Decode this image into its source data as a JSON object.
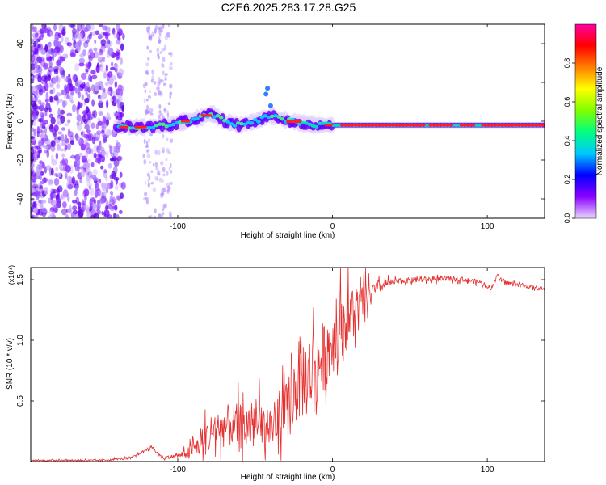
{
  "title": "C2E6.2025.283.17.28.G25",
  "chart_data": [
    {
      "type": "heatmap",
      "name": "spectrogram",
      "xlabel": "Height of straight line (km)",
      "ylabel": "Frequency (Hz)",
      "xlim": [
        -195,
        137
      ],
      "ylim": [
        -50,
        50
      ],
      "xticks": [
        -100,
        0,
        100
      ],
      "yticks": [
        -40,
        -20,
        0,
        20,
        40
      ],
      "ridge": [
        {
          "x": -140,
          "y": -3
        },
        {
          "x": -120,
          "y": -3
        },
        {
          "x": -105,
          "y": -2
        },
        {
          "x": -95,
          "y": 0
        },
        {
          "x": -85,
          "y": 2
        },
        {
          "x": -78,
          "y": 4
        },
        {
          "x": -70,
          "y": 0
        },
        {
          "x": -60,
          "y": -2
        },
        {
          "x": -50,
          "y": 0
        },
        {
          "x": -40,
          "y": 3
        },
        {
          "x": -32,
          "y": 1
        },
        {
          "x": -20,
          "y": -1
        },
        {
          "x": -10,
          "y": -2
        },
        {
          "x": 0,
          "y": -2
        },
        {
          "x": 20,
          "y": -2
        },
        {
          "x": 60,
          "y": -2
        },
        {
          "x": 100,
          "y": -2
        },
        {
          "x": 137,
          "y": -2
        }
      ],
      "colorbar": {
        "label": "Normalized spectral amplitude",
        "ticks": [
          0.0,
          0.2,
          0.4,
          0.6,
          0.8
        ],
        "tick_labels": [
          "0.0",
          "0.2",
          "0.4",
          "0.6",
          "0.8"
        ],
        "range": [
          0,
          1
        ],
        "colors": [
          "#e8d8ff",
          "#8a00ff",
          "#0000ff",
          "#00c8ff",
          "#00ff80",
          "#80ff00",
          "#ffff00",
          "#ff8000",
          "#ff0000",
          "#ff00a0"
        ]
      }
    },
    {
      "type": "line",
      "name": "snr",
      "xlabel": "Height of straight line (km)",
      "ylabel": "SNR (10 * v/v)",
      "y_multiplier": "(x10⁴)",
      "xlim": [
        -195,
        137
      ],
      "ylim": [
        0,
        1.6
      ],
      "xticks": [
        -100,
        0,
        100
      ],
      "yticks": [
        0.5,
        1.0,
        1.5
      ],
      "ytick_labels": [
        "0.5",
        "1.0",
        "1.5"
      ],
      "color": "#e53030",
      "trend": [
        {
          "x": -195,
          "y": 0.01
        },
        {
          "x": -150,
          "y": 0.01
        },
        {
          "x": -130,
          "y": 0.03
        },
        {
          "x": -117,
          "y": 0.12
        },
        {
          "x": -110,
          "y": 0.03
        },
        {
          "x": -95,
          "y": 0.06
        },
        {
          "x": -85,
          "y": 0.15
        },
        {
          "x": -75,
          "y": 0.28
        },
        {
          "x": -65,
          "y": 0.3
        },
        {
          "x": -55,
          "y": 0.28
        },
        {
          "x": -45,
          "y": 0.3
        },
        {
          "x": -38,
          "y": 0.28
        },
        {
          "x": -30,
          "y": 0.4
        },
        {
          "x": -22,
          "y": 0.68
        },
        {
          "x": -15,
          "y": 0.72
        },
        {
          "x": -5,
          "y": 0.88
        },
        {
          "x": 5,
          "y": 1.12
        },
        {
          "x": 15,
          "y": 1.24
        },
        {
          "x": 25,
          "y": 1.4
        },
        {
          "x": 35,
          "y": 1.47
        },
        {
          "x": 45,
          "y": 1.49
        },
        {
          "x": 60,
          "y": 1.5
        },
        {
          "x": 80,
          "y": 1.51
        },
        {
          "x": 95,
          "y": 1.48
        },
        {
          "x": 103,
          "y": 1.43
        },
        {
          "x": 106,
          "y": 1.54
        },
        {
          "x": 110,
          "y": 1.48
        },
        {
          "x": 137,
          "y": 1.42
        }
      ],
      "noise": [
        {
          "x": -195,
          "y": 0.005
        },
        {
          "x": -130,
          "y": 0.01
        },
        {
          "x": -100,
          "y": 0.02
        },
        {
          "x": -90,
          "y": 0.08
        },
        {
          "x": -80,
          "y": 0.2
        },
        {
          "x": -50,
          "y": 0.25
        },
        {
          "x": -35,
          "y": 0.25
        },
        {
          "x": -20,
          "y": 0.45
        },
        {
          "x": 0,
          "y": 0.35
        },
        {
          "x": 15,
          "y": 0.3
        },
        {
          "x": 25,
          "y": 0.08
        },
        {
          "x": 40,
          "y": 0.03
        },
        {
          "x": 137,
          "y": 0.02
        }
      ]
    }
  ]
}
